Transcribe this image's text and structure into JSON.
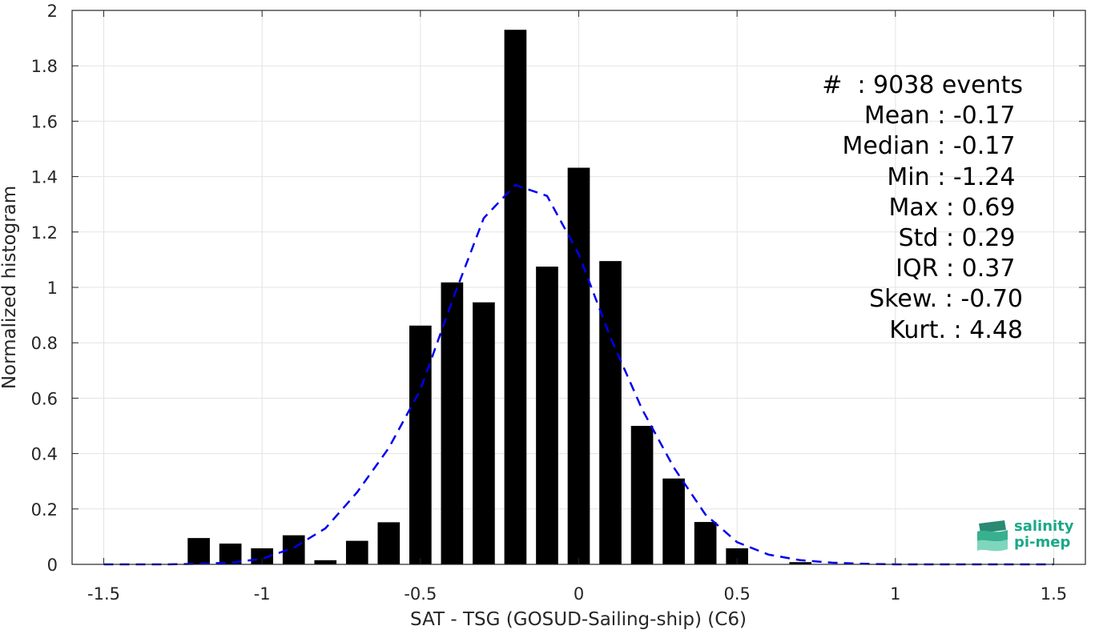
{
  "chart_data": {
    "type": "bar",
    "xlabel": "SAT - TSG (GOSUD-Sailing-ship) (C6)",
    "ylabel": "Normalized histogram",
    "xlim": [
      -1.6,
      1.6
    ],
    "ylim": [
      0,
      2
    ],
    "grid": true,
    "x_ticks": [
      "-1.5",
      "-1",
      "-0.5",
      "0",
      "0.5",
      "1",
      "1.5"
    ],
    "x_tick_values": [
      -1.5,
      -1,
      -0.5,
      0,
      0.5,
      1,
      1.5
    ],
    "y_ticks": [
      "0",
      "0.2",
      "0.4",
      "0.6",
      "0.8",
      "1",
      "1.2",
      "1.4",
      "1.6",
      "1.8",
      "2"
    ],
    "y_tick_values": [
      0,
      0.2,
      0.4,
      0.6,
      0.8,
      1,
      1.2,
      1.4,
      1.6,
      1.8,
      2
    ],
    "bar_width": 0.07,
    "bars": {
      "x": [
        -1.2,
        -1.1,
        -1.0,
        -0.9,
        -0.8,
        -0.7,
        -0.6,
        -0.5,
        -0.4,
        -0.3,
        -0.2,
        -0.1,
        0.0,
        0.1,
        0.2,
        0.3,
        0.4,
        0.5,
        0.6,
        0.7
      ],
      "values": [
        0.095,
        0.075,
        0.058,
        0.105,
        0.015,
        0.085,
        0.152,
        0.862,
        1.018,
        0.946,
        1.93,
        1.075,
        1.432,
        1.095,
        0.5,
        0.31,
        0.153,
        0.058,
        0.0,
        0.008
      ],
      "color": "#000000"
    },
    "fit_curve": {
      "style": "dashed",
      "color": "#0000ee",
      "x": [
        -1.5,
        -1.4,
        -1.3,
        -1.2,
        -1.1,
        -1.0,
        -0.9,
        -0.8,
        -0.7,
        -0.6,
        -0.5,
        -0.4,
        -0.3,
        -0.2,
        -0.1,
        0.0,
        0.1,
        0.2,
        0.3,
        0.4,
        0.5,
        0.6,
        0.7,
        0.8,
        0.9,
        1.0,
        1.1,
        1.2,
        1.3,
        1.4,
        1.5
      ],
      "y": [
        0.0,
        0.0,
        0.0,
        0.002,
        0.006,
        0.02,
        0.06,
        0.13,
        0.26,
        0.42,
        0.63,
        0.95,
        1.25,
        1.37,
        1.33,
        1.12,
        0.82,
        0.56,
        0.35,
        0.18,
        0.08,
        0.035,
        0.015,
        0.006,
        0.002,
        0.0,
        0.0,
        0.0,
        0.0,
        0.0,
        0.0
      ]
    }
  },
  "stats": [
    "#  : 9038 events",
    "Mean : -0.17 ",
    "Median : -0.17 ",
    "Min : -1.24 ",
    "Max : 0.69 ",
    "Std : 0.29 ",
    "IQR : 0.37 ",
    "Skew. : -0.70",
    "Kurt. : 4.48"
  ],
  "logo": {
    "line1": "salinity",
    "line2": "pi-mep",
    "color": "#1aa889"
  }
}
